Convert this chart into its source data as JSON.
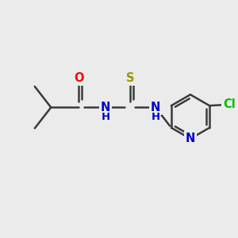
{
  "background_color": "#ebebeb",
  "bond_color": "#3a3a3a",
  "bond_width": 1.8,
  "atom_colors": {
    "O": "#ff0000",
    "N": "#0000cc",
    "S": "#999900",
    "Cl": "#00bb00",
    "C": "#3a3a3a"
  },
  "font_size": 10.5,
  "fig_size": [
    3.0,
    3.0
  ],
  "dpi": 100,
  "xlim": [
    0,
    10
  ],
  "ylim": [
    0,
    10
  ]
}
